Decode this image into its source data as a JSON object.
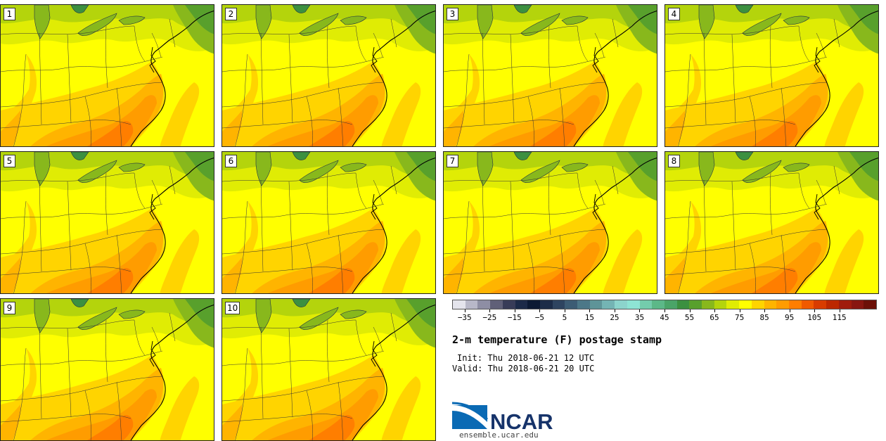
{
  "panels": [
    {
      "label": "1"
    },
    {
      "label": "2"
    },
    {
      "label": "3"
    },
    {
      "label": "4"
    },
    {
      "label": "5"
    },
    {
      "label": "6"
    },
    {
      "label": "7"
    },
    {
      "label": "8"
    },
    {
      "label": "9"
    },
    {
      "label": "10"
    }
  ],
  "colorbar": {
    "colors": [
      "#e4e4ec",
      "#b8b8c8",
      "#8e8ea4",
      "#606078",
      "#383c58",
      "#1c2a48",
      "#0c1a34",
      "#1c2c48",
      "#2e4460",
      "#3c5c74",
      "#4c7888",
      "#5e9498",
      "#74b4b4",
      "#8cd4cc",
      "#8ee4d4",
      "#74ccac",
      "#5cb888",
      "#4aa468",
      "#3c9040",
      "#58a02c",
      "#88b81c",
      "#b4d40c",
      "#e0ec04",
      "#ffff00",
      "#ffd400",
      "#ffb400",
      "#ff9c00",
      "#ff7e00",
      "#f05a00",
      "#d83c00",
      "#bc2800",
      "#a01c0c",
      "#881610",
      "#6c1008"
    ],
    "ticks": [
      "-35",
      "-25",
      "-15",
      "-5",
      "5",
      "15",
      "25",
      "35",
      "45",
      "55",
      "65",
      "75",
      "85",
      "95",
      "105",
      "115"
    ]
  },
  "header": {
    "title": "2-m temperature (F) postage stamp",
    "init": "Init: Thu 2018-06-21 12 UTC",
    "valid": "Valid: Thu 2018-06-21 20 UTC"
  },
  "branding": {
    "logo_text": "NCAR",
    "site": "ensemble.ucar.edu"
  }
}
